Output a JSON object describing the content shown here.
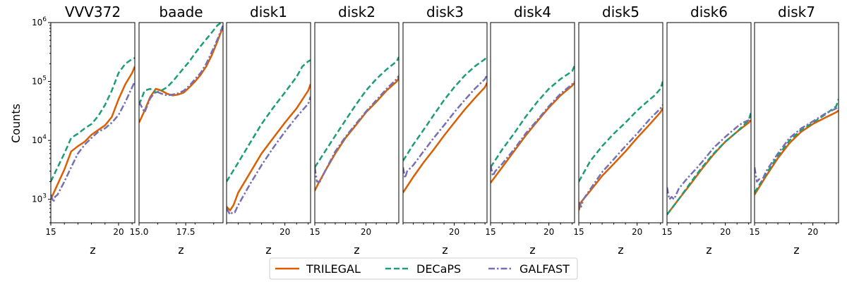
{
  "chart_data": {
    "type": "line",
    "ylabel": "Counts",
    "yscale": "log",
    "ylim": [
      400,
      1000000
    ],
    "ytick_labels": [
      "10^3",
      "10^4",
      "10^5",
      "10^6"
    ],
    "legend": {
      "placement": "bottom-center",
      "entries": [
        {
          "name": "TRILEGAL",
          "color": "#d95f02",
          "dash": "solid"
        },
        {
          "name": "DECaPS",
          "color": "#1b9e77",
          "dash": "dashed"
        },
        {
          "name": "GALFAST",
          "color": "#7570b3",
          "dash": "dashdot"
        }
      ]
    },
    "panels": [
      {
        "title": "VVV372",
        "xlabel": "z",
        "xlim": [
          15,
          21.2
        ],
        "xticks": [
          15,
          20
        ],
        "xtick_labels": [
          "15",
          "20"
        ],
        "series": [
          {
            "name": "TRILEGAL",
            "x": [
              15,
              15.5,
              16,
              16.5,
              17,
              17.5,
              18,
              18.5,
              19,
              19.5,
              20,
              20.5,
              21,
              21.2
            ],
            "y": [
              1000,
              1800,
              3200,
              6500,
              8000,
              9500,
              12500,
              15000,
              18000,
              25000,
              50000,
              90000,
              140000,
              180000
            ]
          },
          {
            "name": "DECaPS",
            "x": [
              15,
              15.5,
              16,
              16.5,
              17,
              17.5,
              18,
              18.5,
              19,
              19.5,
              20,
              20.5,
              21,
              21.2
            ],
            "y": [
              2000,
              3500,
              6000,
              11000,
              13000,
              16000,
              19000,
              26000,
              40000,
              70000,
              140000,
              200000,
              240000,
              250000
            ]
          },
          {
            "name": "GALFAST",
            "x": [
              15,
              15.2,
              15.3,
              15.5,
              16,
              16.5,
              17,
              17.5,
              18,
              18.5,
              19,
              19.5,
              20,
              20.5,
              21,
              21.2
            ],
            "y": [
              1200,
              900,
              1100,
              1200,
              2000,
              3500,
              6000,
              8500,
              11000,
              14000,
              16000,
              20000,
              27000,
              45000,
              80000,
              100000
            ]
          }
        ]
      },
      {
        "title": "baade",
        "xlabel": "z",
        "xlim": [
          15,
          19.5
        ],
        "xticks": [
          15,
          17.5
        ],
        "xtick_labels": [
          "15.0",
          "17.5"
        ],
        "series": [
          {
            "name": "TRILEGAL",
            "x": [
              15,
              15.3,
              15.6,
              15.9,
              16.2,
              16.5,
              16.8,
              17.1,
              17.4,
              17.7,
              18,
              18.3,
              18.6,
              18.9,
              19.2,
              19.5
            ],
            "y": [
              20000,
              32000,
              55000,
              75000,
              70000,
              62000,
              58000,
              60000,
              65000,
              80000,
              100000,
              130000,
              180000,
              280000,
              480000,
              850000
            ]
          },
          {
            "name": "DECaPS",
            "x": [
              15,
              15.3,
              15.6,
              15.9,
              16.2,
              16.5,
              16.8,
              17.1,
              17.4,
              17.7,
              18,
              18.3,
              18.6,
              18.9,
              19.2,
              19.5
            ],
            "y": [
              40000,
              70000,
              75000,
              65000,
              70000,
              80000,
              100000,
              130000,
              170000,
              220000,
              300000,
              400000,
              520000,
              680000,
              900000,
              1050000
            ]
          },
          {
            "name": "GALFAST",
            "x": [
              15,
              15.3,
              15.6,
              15.9,
              16.2,
              16.5,
              16.8,
              17.1,
              17.4,
              17.7,
              18,
              18.3,
              18.6,
              18.9,
              19.2,
              19.5
            ],
            "y": [
              45000,
              30000,
              52000,
              68000,
              62000,
              58000,
              60000,
              63000,
              70000,
              85000,
              110000,
              140000,
              200000,
              320000,
              520000,
              900000
            ]
          }
        ]
      },
      {
        "title": "disk1",
        "xlabel": "z",
        "xlim": [
          15,
          22.2
        ],
        "xticks": [
          20
        ],
        "xtick_labels": [
          "20"
        ],
        "series": [
          {
            "name": "TRILEGAL",
            "x": [
              15,
              15.3,
              15.6,
              16,
              17,
              18,
              19,
              20,
              21,
              22,
              22.2
            ],
            "y": [
              750,
              650,
              800,
              1300,
              2800,
              6000,
              11000,
              20000,
              35000,
              70000,
              90000
            ]
          },
          {
            "name": "DECaPS",
            "x": [
              15,
              16,
              17,
              18,
              19,
              20,
              21,
              21.5,
              22,
              22.2
            ],
            "y": [
              2000,
              4200,
              9000,
              19000,
              36000,
              65000,
              120000,
              180000,
              220000,
              230000
            ]
          },
          {
            "name": "GALFAST",
            "x": [
              15,
              15.3,
              15.5,
              15.7,
              16,
              17,
              18,
              19,
              20,
              21,
              22,
              22.2
            ],
            "y": [
              700,
              550,
              600,
              600,
              800,
              1800,
              3800,
              7500,
              14000,
              25000,
              42000,
              55000
            ]
          }
        ]
      },
      {
        "title": "disk2",
        "xlabel": "z",
        "xlim": [
          15,
          23.2
        ],
        "xticks": [
          15,
          20
        ],
        "xtick_labels": [
          "15",
          "20"
        ],
        "series": [
          {
            "name": "TRILEGAL",
            "x": [
              15,
              15.3,
              16,
              17,
              18,
              19,
              20,
              21,
              22,
              23,
              23.2
            ],
            "y": [
              1400,
              1800,
              3000,
              6000,
              11000,
              18000,
              30000,
              45000,
              70000,
              100000,
              115000
            ]
          },
          {
            "name": "DECaPS",
            "x": [
              15,
              16,
              17,
              18,
              19,
              20,
              21,
              22,
              23,
              23.2
            ],
            "y": [
              3500,
              6500,
              12000,
              22000,
              40000,
              70000,
              110000,
              160000,
              220000,
              260000
            ]
          },
          {
            "name": "GALFAST",
            "x": [
              15,
              15.2,
              15.5,
              16,
              17,
              18,
              19,
              20,
              21,
              22,
              23,
              23.2
            ],
            "y": [
              3500,
              2000,
              2000,
              3000,
              6500,
              11500,
              19000,
              31000,
              48000,
              75000,
              110000,
              125000
            ]
          }
        ]
      },
      {
        "title": "disk3",
        "xlabel": "z",
        "xlim": [
          15,
          23.2
        ],
        "xticks": [
          20
        ],
        "xtick_labels": [
          "20"
        ],
        "series": [
          {
            "name": "TRILEGAL",
            "x": [
              15,
              16,
              17,
              18,
              19,
              20,
              21,
              22,
              23,
              23.2
            ],
            "y": [
              1300,
              2400,
              4200,
              7000,
              12000,
              20000,
              33000,
              52000,
              80000,
              95000
            ]
          },
          {
            "name": "DECaPS",
            "x": [
              15,
              16,
              17,
              18,
              19,
              20,
              21,
              22,
              23,
              23.2
            ],
            "y": [
              4500,
              8500,
              15000,
              27000,
              48000,
              80000,
              125000,
              180000,
              240000,
              265000
            ]
          },
          {
            "name": "GALFAST",
            "x": [
              15,
              15.2,
              15.4,
              16,
              17,
              18,
              19,
              20,
              21,
              22,
              23,
              23.2
            ],
            "y": [
              3500,
              2300,
              3000,
              3800,
              6500,
              11000,
              18000,
              30000,
              48000,
              75000,
              110000,
              130000
            ]
          }
        ]
      },
      {
        "title": "disk4",
        "xlabel": "z",
        "xlim": [
          15,
          22.2
        ],
        "xticks": [
          15,
          20
        ],
        "xtick_labels": [
          "15",
          "20"
        ],
        "series": [
          {
            "name": "TRILEGAL",
            "x": [
              15,
              16,
              17,
              18,
              19,
              20,
              21,
              22,
              22.2
            ],
            "y": [
              1900,
              3500,
              6500,
              12000,
              21000,
              36000,
              58000,
              85000,
              95000
            ]
          },
          {
            "name": "DECaPS",
            "x": [
              15,
              16,
              17,
              18,
              19,
              20,
              21,
              22,
              22.2
            ],
            "y": [
              3500,
              7000,
              13000,
              25000,
              45000,
              75000,
              110000,
              150000,
              185000
            ]
          },
          {
            "name": "GALFAST",
            "x": [
              15,
              15.2,
              15.4,
              16,
              17,
              18,
              19,
              20,
              21,
              22,
              22.2
            ],
            "y": [
              3800,
              2500,
              3000,
              4000,
              7000,
              13000,
              22000,
              38000,
              62000,
              90000,
              100000
            ]
          }
        ]
      },
      {
        "title": "disk5",
        "xlabel": "z",
        "xlim": [
          15,
          22.2
        ],
        "xticks": [
          15,
          20
        ],
        "xtick_labels": [
          "15",
          "20"
        ],
        "series": [
          {
            "name": "TRILEGAL",
            "x": [
              15,
              15.2,
              16,
              17,
              18,
              19,
              20,
              21,
              22,
              22.2
            ],
            "y": [
              650,
              900,
              1400,
              2500,
              4000,
              6500,
              11000,
              18000,
              30000,
              35000
            ]
          },
          {
            "name": "DECaPS",
            "x": [
              15,
              16,
              17,
              18,
              19,
              20,
              21,
              21.5,
              22,
              22.2
            ],
            "y": [
              2000,
              4500,
              8000,
              13000,
              20000,
              32000,
              48000,
              58000,
              75000,
              100000
            ]
          },
          {
            "name": "GALFAST",
            "x": [
              15,
              15.2,
              15.4,
              16,
              17,
              18,
              19,
              20,
              21,
              22,
              22.2
            ],
            "y": [
              900,
              750,
              1000,
              1500,
              2900,
              4800,
              8000,
              13000,
              22000,
              35000,
              40000
            ]
          }
        ]
      },
      {
        "title": "disk6",
        "xlabel": "z",
        "xlim": [
          15,
          22.2
        ],
        "xticks": [
          15,
          20
        ],
        "xtick_labels": [
          "15",
          "20"
        ],
        "series": [
          {
            "name": "TRILEGAL",
            "x": [
              15,
              16,
              17,
              18,
              19,
              20,
              21,
              22,
              22.2
            ],
            "y": [
              550,
              1000,
              1800,
              3300,
              5800,
              9500,
              14000,
              20000,
              22000
            ]
          },
          {
            "name": "DECaPS",
            "x": [
              15,
              16,
              17,
              18,
              19,
              20,
              21,
              22,
              22.2
            ],
            "y": [
              550,
              1000,
              1900,
              3500,
              6000,
              9500,
              14000,
              22000,
              30000
            ]
          },
          {
            "name": "GALFAST",
            "x": [
              15,
              15.2,
              15.4,
              15.6,
              16,
              16.5,
              17,
              17.5,
              18,
              19,
              20,
              21,
              21.5,
              22,
              22.2
            ],
            "y": [
              1600,
              1000,
              1100,
              1000,
              1500,
              2000,
              2600,
              3300,
              4300,
              7500,
              11500,
              17000,
              20000,
              22000,
              25000
            ]
          }
        ]
      },
      {
        "title": "disk7",
        "xlabel": "z",
        "xlim": [
          15,
          22.2
        ],
        "xticks": [
          15,
          20
        ],
        "xtick_labels": [
          "15",
          "20"
        ],
        "series": [
          {
            "name": "TRILEGAL",
            "x": [
              15,
              16,
              17,
              18,
              19,
              20,
              21,
              22,
              22.2
            ],
            "y": [
              1200,
              2500,
              5000,
              9000,
              14000,
              19000,
              24000,
              30000,
              32000
            ]
          },
          {
            "name": "DECaPS",
            "x": [
              15,
              16,
              17,
              18,
              19,
              20,
              21,
              22,
              22.2
            ],
            "y": [
              1300,
              2700,
              5500,
              10000,
              15000,
              20000,
              27000,
              38000,
              50000
            ]
          },
          {
            "name": "GALFAST",
            "x": [
              15,
              15.2,
              15.4,
              15.6,
              16,
              17,
              18,
              19,
              20,
              21,
              22,
              22.2
            ],
            "y": [
              3500,
              2000,
              2200,
              2000,
              3000,
              6000,
              11000,
              16000,
              21000,
              28000,
              35000,
              38000
            ]
          }
        ]
      }
    ]
  }
}
